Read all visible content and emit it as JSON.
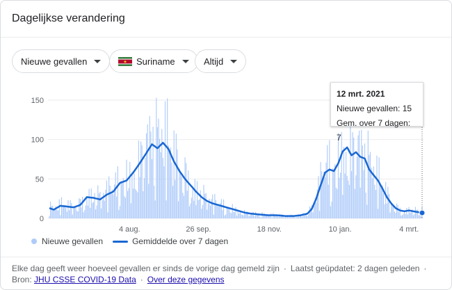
{
  "title": "Dagelijkse verandering",
  "filters": {
    "metric": "Nieuwe gevallen",
    "country": "Suriname",
    "range": "Altijd"
  },
  "colors": {
    "bar": "#aecbfa",
    "line": "#1967d2",
    "flag_green": "#377e3f",
    "flag_white": "#ffffff",
    "flag_red": "#b40a2d",
    "flag_star": "#ecc81d"
  },
  "tooltip": {
    "date": "12 mrt. 2021",
    "cases_line": "Nieuwe gevallen: 15",
    "avg_line": "Gem. over 7 dagen: 7"
  },
  "chart_data": {
    "type": "bar",
    "y_ticks": [
      "0",
      "50",
      "100",
      "150"
    ],
    "ylim": [
      0,
      150
    ],
    "x_tick_labels": [
      "4 aug.",
      "26 sep.",
      "18 nov.",
      "10 jan.",
      "4 mrt."
    ],
    "series": [
      {
        "name": "Nieuwe gevallen",
        "type": "bar"
      },
      {
        "name": "Gemiddelde over 7 dagen",
        "type": "line"
      }
    ],
    "avg_anchors": [
      {
        "day": 0,
        "value": 13
      },
      {
        "day": 4,
        "value": 11
      },
      {
        "day": 10,
        "value": 16
      },
      {
        "day": 16,
        "value": 15
      },
      {
        "day": 22,
        "value": 14
      },
      {
        "day": 28,
        "value": 17
      },
      {
        "day": 34,
        "value": 27
      },
      {
        "day": 40,
        "value": 26
      },
      {
        "day": 46,
        "value": 24
      },
      {
        "day": 52,
        "value": 30
      },
      {
        "day": 58,
        "value": 34
      },
      {
        "day": 64,
        "value": 45
      },
      {
        "day": 70,
        "value": 48
      },
      {
        "day": 76,
        "value": 58
      },
      {
        "day": 82,
        "value": 70
      },
      {
        "day": 88,
        "value": 83
      },
      {
        "day": 93,
        "value": 94
      },
      {
        "day": 98,
        "value": 89
      },
      {
        "day": 103,
        "value": 96
      },
      {
        "day": 108,
        "value": 88
      },
      {
        "day": 113,
        "value": 72
      },
      {
        "day": 118,
        "value": 60
      },
      {
        "day": 123,
        "value": 50
      },
      {
        "day": 128,
        "value": 42
      },
      {
        "day": 133,
        "value": 34
      },
      {
        "day": 138,
        "value": 27
      },
      {
        "day": 143,
        "value": 22
      },
      {
        "day": 148,
        "value": 19
      },
      {
        "day": 153,
        "value": 17
      },
      {
        "day": 158,
        "value": 15
      },
      {
        "day": 163,
        "value": 13
      },
      {
        "day": 168,
        "value": 11
      },
      {
        "day": 173,
        "value": 9
      },
      {
        "day": 178,
        "value": 7
      },
      {
        "day": 183,
        "value": 6
      },
      {
        "day": 190,
        "value": 5
      },
      {
        "day": 198,
        "value": 4
      },
      {
        "day": 206,
        "value": 4
      },
      {
        "day": 214,
        "value": 3
      },
      {
        "day": 222,
        "value": 3
      },
      {
        "day": 228,
        "value": 4
      },
      {
        "day": 234,
        "value": 6
      },
      {
        "day": 238,
        "value": 12
      },
      {
        "day": 242,
        "value": 25
      },
      {
        "day": 246,
        "value": 42
      },
      {
        "day": 250,
        "value": 58
      },
      {
        "day": 254,
        "value": 62
      },
      {
        "day": 258,
        "value": 60
      },
      {
        "day": 262,
        "value": 70
      },
      {
        "day": 266,
        "value": 85
      },
      {
        "day": 270,
        "value": 90
      },
      {
        "day": 274,
        "value": 80
      },
      {
        "day": 278,
        "value": 84
      },
      {
        "day": 282,
        "value": 78
      },
      {
        "day": 286,
        "value": 76
      },
      {
        "day": 290,
        "value": 62
      },
      {
        "day": 294,
        "value": 55
      },
      {
        "day": 298,
        "value": 48
      },
      {
        "day": 302,
        "value": 38
      },
      {
        "day": 306,
        "value": 27
      },
      {
        "day": 310,
        "value": 19
      },
      {
        "day": 314,
        "value": 13
      },
      {
        "day": 318,
        "value": 10
      },
      {
        "day": 322,
        "value": 9
      },
      {
        "day": 326,
        "value": 10
      },
      {
        "day": 330,
        "value": 9
      },
      {
        "day": 334,
        "value": 8
      },
      {
        "day": 338,
        "value": 7
      }
    ],
    "bar_variation": [
      0.25,
      1.35,
      0.8,
      1.55,
      0.5,
      1.1,
      0.95,
      1.7,
      0.35,
      1.25,
      0.7,
      1.45,
      0.9,
      0.6,
      1.3,
      1.05,
      0.45,
      1.6,
      0.75,
      1.2,
      0.55,
      1.4,
      1.0,
      0.65
    ],
    "total_days": 339,
    "highlight": {
      "date": "12 mrt. 2021",
      "cases": 15,
      "avg": 7
    }
  },
  "legend": {
    "bars_label": "Nieuwe gevallen",
    "line_label": "Gemiddelde over 7 dagen"
  },
  "footer": {
    "description": "Elke dag geeft weer hoeveel gevallen er sinds de vorige dag gemeld zijn",
    "updated": "Laatst geüpdatet: 2 dagen geleden",
    "source_label": "Bron:",
    "source_link": "JHU CSSE COVID-19 Data",
    "about_link": "Over deze gegevens",
    "dot": "·"
  }
}
